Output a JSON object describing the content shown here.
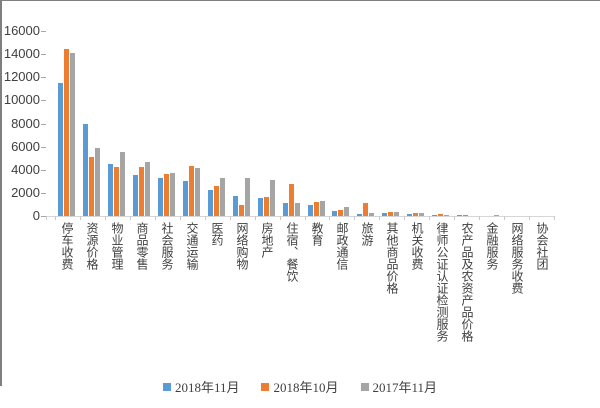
{
  "chart_data": {
    "type": "bar",
    "title": "",
    "xlabel": "",
    "ylabel": "",
    "ylim": [
      0,
      16000
    ],
    "ytick_interval": 2000,
    "grid": false,
    "legend_position": "bottom",
    "axis_text_color": "#404040",
    "axis_line_color": "#D6D6D6",
    "categories": [
      "停车收费",
      "资源价格",
      "物业管理",
      "商品零售",
      "社会服务",
      "交通运输",
      "医药",
      "网络购物",
      "房地产",
      "住宿、餐饮",
      "教育",
      "邮政通信",
      "旅游",
      "其他商品价格",
      "机关收费",
      "律师公证认证检测服务",
      "农产品及农资产品价格",
      "金融服务",
      "网络服务收费",
      "协会社团"
    ],
    "series": [
      {
        "name": "2018年11月",
        "color": "#5B9BD5",
        "values": [
          11500,
          7980,
          4500,
          3520,
          3250,
          3050,
          2250,
          1730,
          1530,
          1100,
          950,
          460,
          175,
          260,
          175,
          100,
          90,
          0,
          0,
          0
        ]
      },
      {
        "name": "2018年10月",
        "color": "#ED7D31",
        "values": [
          14450,
          5130,
          4260,
          4210,
          3600,
          4350,
          2600,
          950,
          1620,
          2740,
          1240,
          550,
          1120,
          320,
          260,
          150,
          90,
          0,
          0,
          0
        ]
      },
      {
        "name": "2017年11月",
        "color": "#A5A5A5",
        "values": [
          14100,
          5850,
          5500,
          4640,
          3720,
          4150,
          3310,
          3260,
          3090,
          1120,
          1330,
          750,
          230,
          320,
          260,
          100,
          0,
          60,
          0,
          0
        ]
      }
    ]
  },
  "frame": {
    "border_color": "#7F7F7F"
  }
}
